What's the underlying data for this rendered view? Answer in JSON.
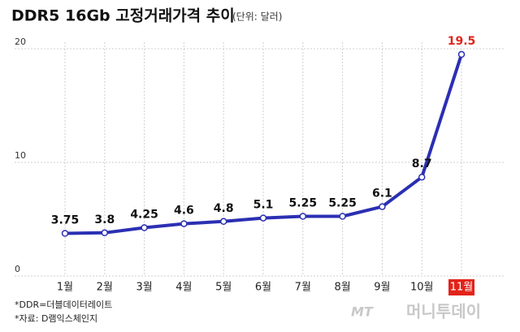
{
  "chart_data": {
    "type": "line",
    "title": "DDR5 16Gb 고정거래가격 추이",
    "subtitle": "(단위: 달러)",
    "categories": [
      "1월",
      "2월",
      "3월",
      "4월",
      "5월",
      "6월",
      "7월",
      "8월",
      "9월",
      "10월",
      "11월"
    ],
    "series": [
      {
        "name": "DDR5 16Gb",
        "color": "#2b2fb3",
        "values": [
          3.75,
          3.8,
          4.25,
          4.6,
          4.8,
          5.1,
          5.25,
          5.25,
          6.1,
          8.7,
          19.5
        ]
      }
    ],
    "ylim": [
      0,
      20
    ],
    "yticks": [
      0,
      10,
      20
    ],
    "grid": true,
    "highlight_color": "#e2231a",
    "notes": [
      "*DDR=더블데이터레이트",
      "*자료: D램익스체인지"
    ],
    "watermark": [
      "MT",
      "머니투데이"
    ]
  }
}
